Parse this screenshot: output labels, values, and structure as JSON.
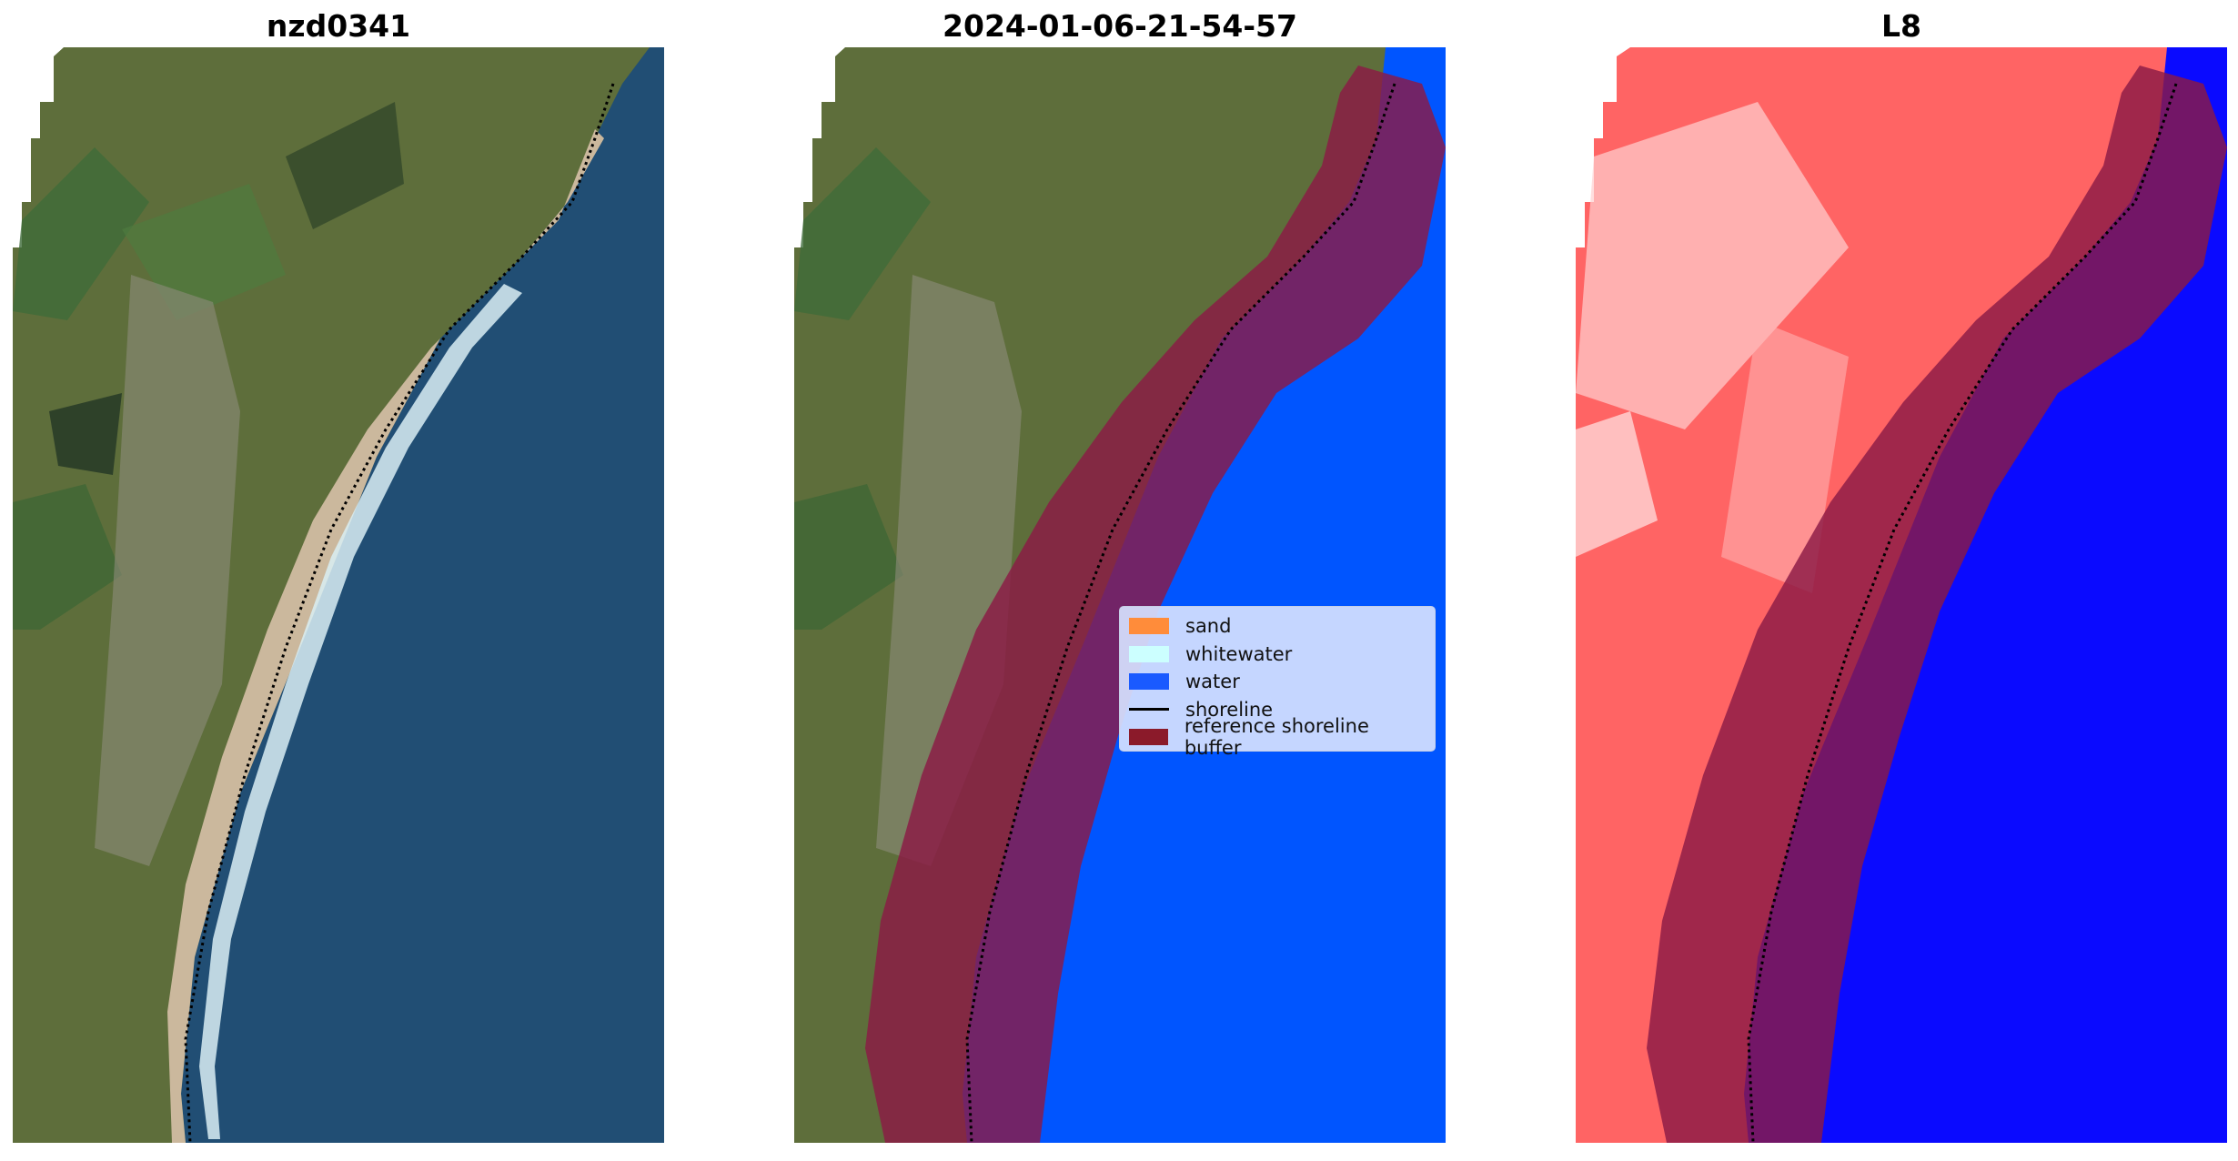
{
  "panels": [
    {
      "title": "nzd0341",
      "kind": "rgb"
    },
    {
      "title": "2024-01-06-21-54-57",
      "kind": "classified"
    },
    {
      "title": "L8",
      "kind": "index"
    }
  ],
  "legend": {
    "items": [
      {
        "label": "sand",
        "color": "#ff8c3a",
        "type": "patch"
      },
      {
        "label": "whitewater",
        "color": "#ccffff",
        "type": "patch"
      },
      {
        "label": "water",
        "color": "#1a5aff",
        "type": "patch"
      },
      {
        "label": "shoreline",
        "color": "#000000",
        "type": "line"
      },
      {
        "label": "reference shoreline buffer",
        "color": "#8b1a2a",
        "type": "patch"
      }
    ]
  },
  "colors": {
    "land": "#5d6e3c",
    "sea": "#214e74",
    "sand": "#c9b79a",
    "water_class": "#0055ff",
    "buffer": "#8b1a46",
    "index_land": "#ff6060",
    "index_water": "#0a0aff"
  }
}
